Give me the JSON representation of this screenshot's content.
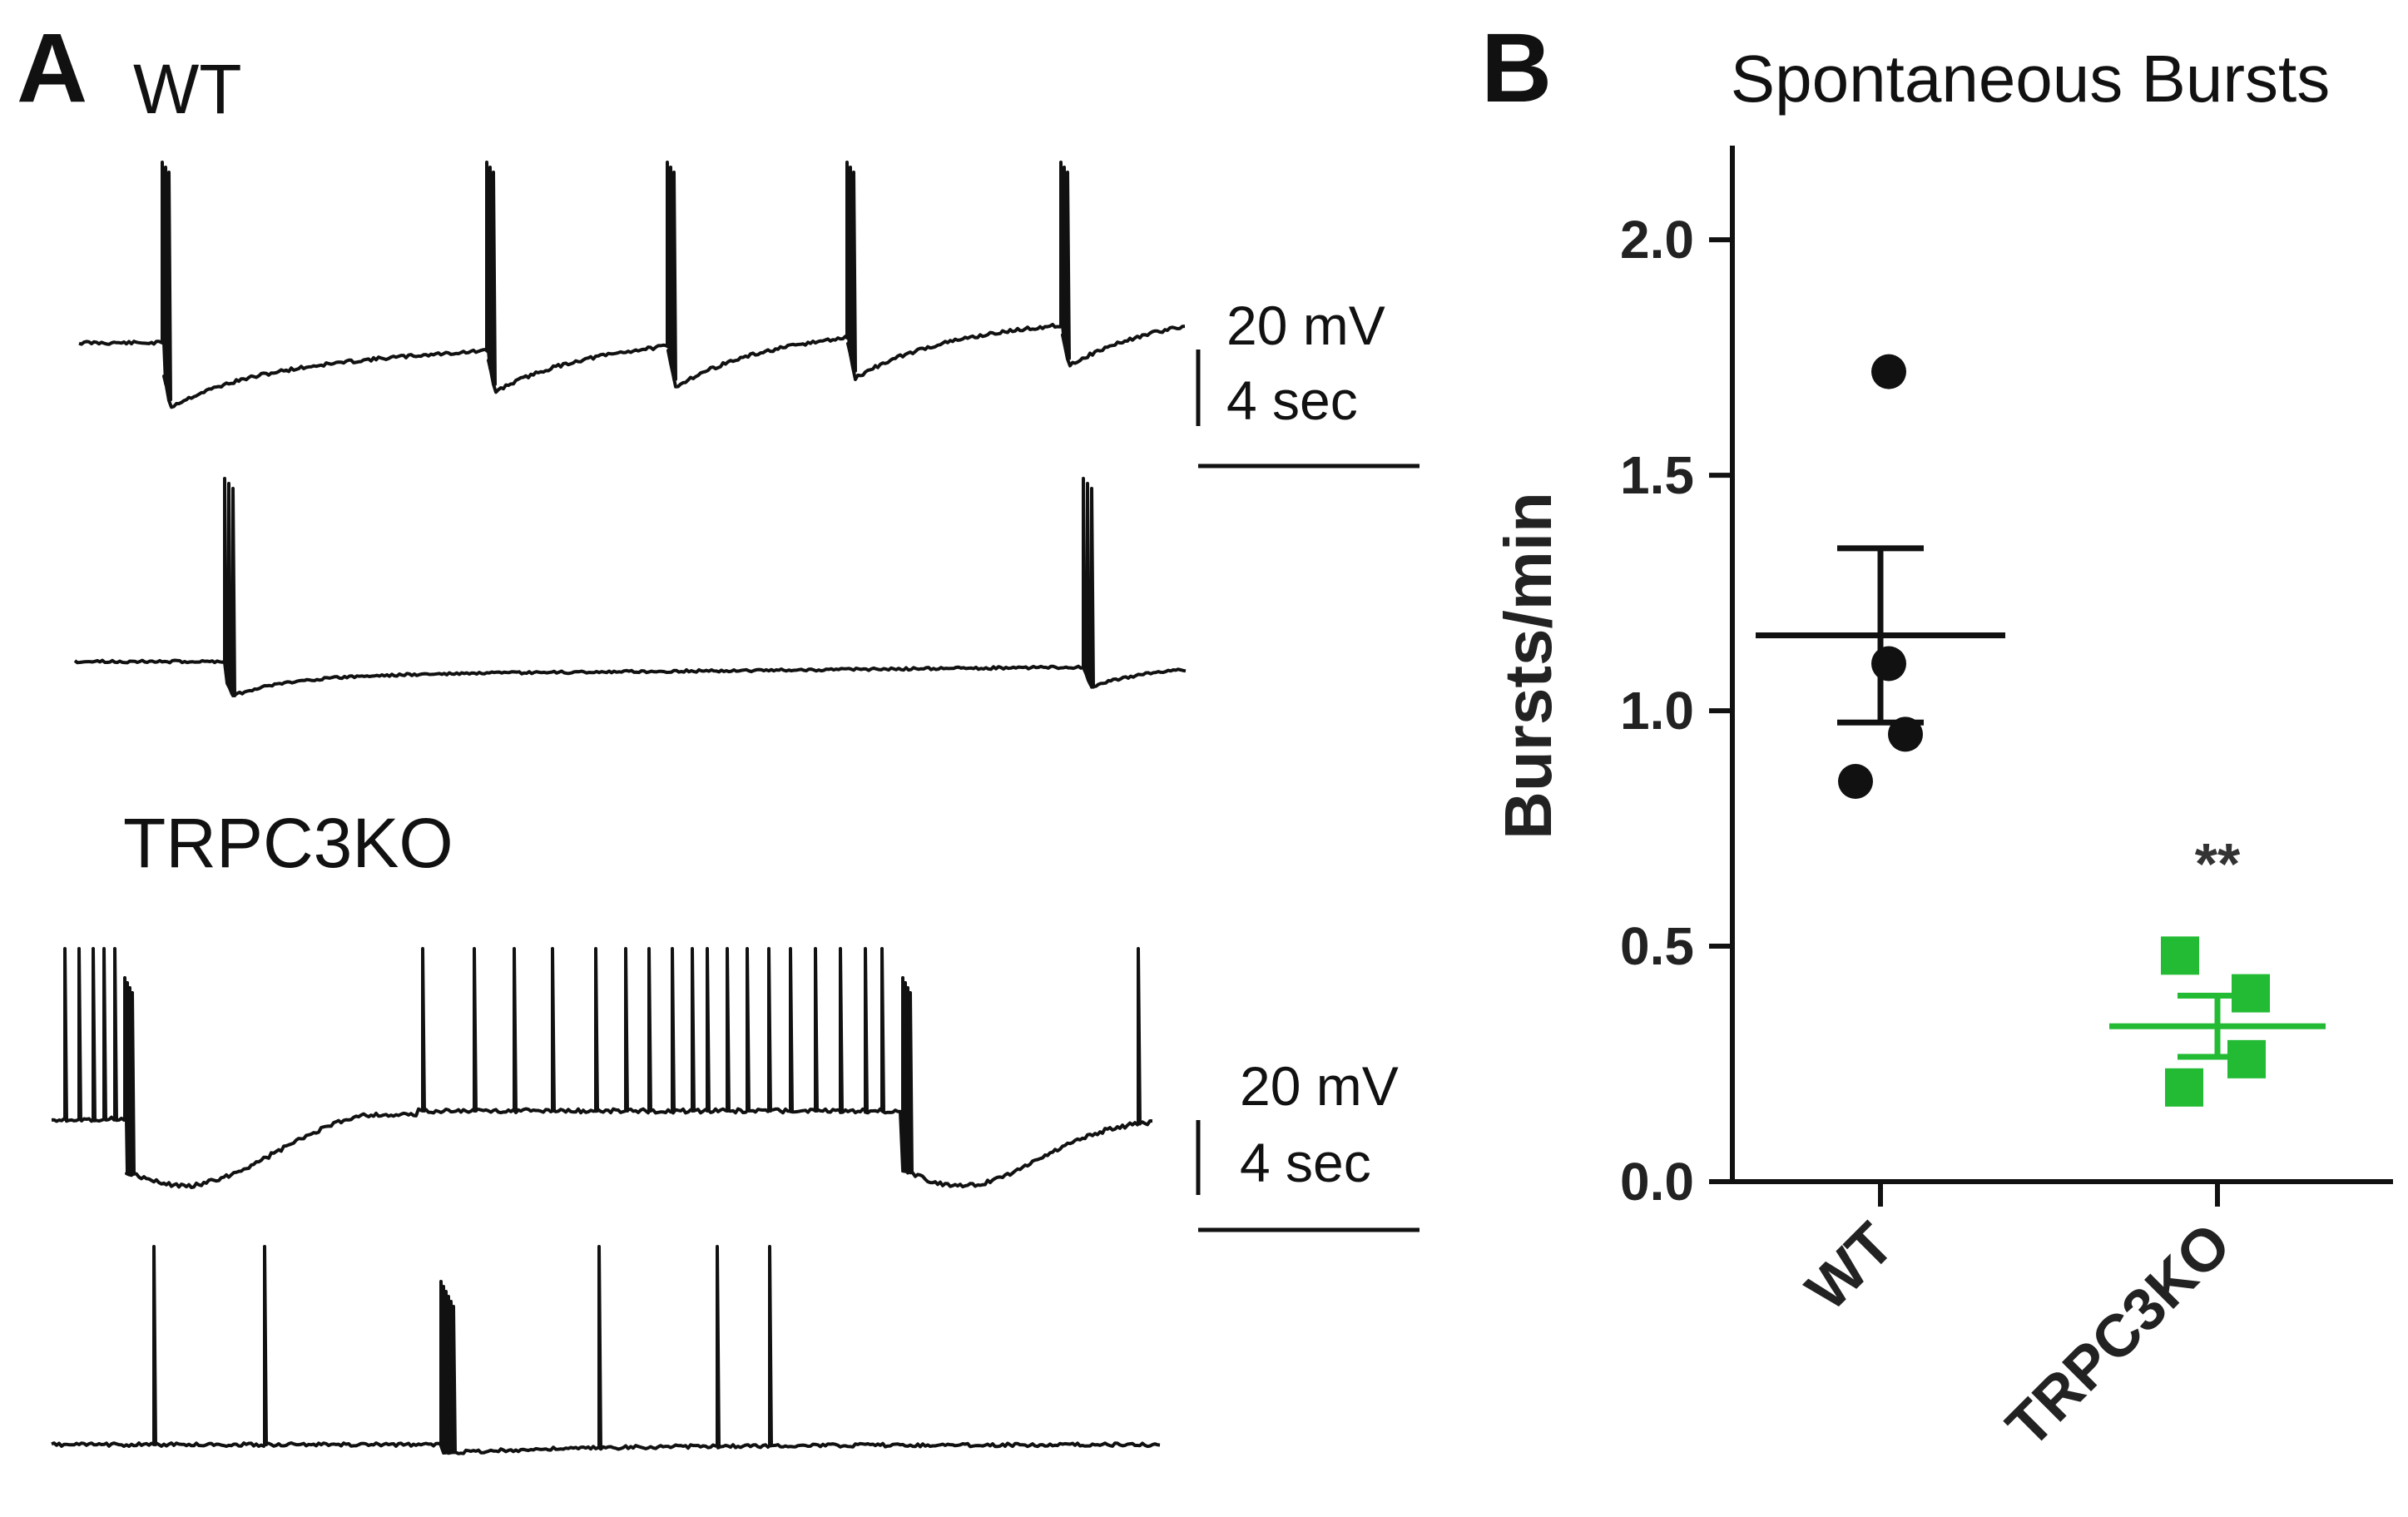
{
  "panel_a": {
    "letter": "A",
    "wt_label": "WT",
    "ko_label": "TRPC3KO",
    "scale_bar_top": {
      "voltage": "20 mV",
      "time": "4 sec"
    },
    "scale_bar_bottom": {
      "voltage": "20 mV",
      "time": "4 sec"
    }
  },
  "panel_b": {
    "letter": "B"
  },
  "chart_data": {
    "type": "scatter",
    "title": "Spontaneous Bursts",
    "xlabel": "",
    "ylabel": "Bursts/min",
    "ylim": [
      0,
      2.2
    ],
    "yticks": [
      "0.0",
      "0.5",
      "1.0",
      "1.5",
      "2.0"
    ],
    "ytick_values": [
      0,
      0.5,
      1.0,
      1.5,
      2.0
    ],
    "categories": [
      "WT",
      "TRPC3KO"
    ],
    "series": [
      {
        "category": "WT",
        "marker": "circle",
        "color": "#111111",
        "points": [
          1.72,
          1.1,
          0.95,
          0.85
        ],
        "mean": 1.16,
        "sem": 0.185
      },
      {
        "category": "TRPC3KO",
        "marker": "square",
        "color": "#22bb33",
        "points": [
          0.48,
          0.4,
          0.26,
          0.2
        ],
        "mean": 0.33,
        "sem": 0.065
      }
    ],
    "annotations": [
      {
        "category": "TRPC3KO",
        "text": "**"
      }
    ],
    "grid": false,
    "legend": "none"
  }
}
